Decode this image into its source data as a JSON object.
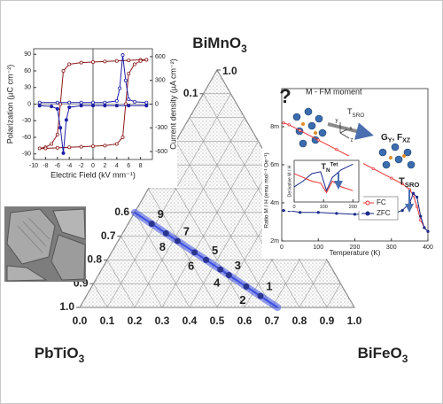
{
  "chart_data": [
    {
      "type": "ternary",
      "labels": {
        "top": [
          "BiMnO",
          "3"
        ],
        "left": [
          "PbTiO",
          "3"
        ],
        "right": [
          "BiFeO",
          "3"
        ]
      },
      "bottom_ticks": [
        {
          "value": 0,
          "label": "0.0"
        },
        0.1,
        0.2,
        0.3,
        0.4,
        0.5,
        0.6,
        0.7,
        0.8,
        0.9,
        {
          "value": 1,
          "label": "1.0"
        }
      ],
      "left_ticks": [
        {
          "value": 1,
          "label": "1.0"
        },
        0.9,
        0.8,
        0.7,
        0.6,
        0.1
      ],
      "right_ticks": [
        {
          "value": 1,
          "label": "1.0"
        }
      ],
      "grid": true,
      "color": "#3d4fe0",
      "line": {
        "x": [
          0,
          0.72
        ],
        "values": [
          0.4,
          0
        ]
      },
      "samples": {
        "labels": [
          "1",
          "2",
          "3",
          "4",
          "5",
          "6",
          "7",
          "8",
          "9"
        ],
        "x": [
          0.634,
          0.562,
          0.475,
          0.432,
          0.36,
          0.302,
          0.216,
          0.158,
          0.086
        ],
        "values": [
          0.048,
          0.088,
          0.136,
          0.16,
          0.2,
          0.232,
          0.28,
          0.312,
          0.352
        ]
      }
    },
    {
      "type": "line",
      "xlabel": "Electric Field (kV mm⁻¹)",
      "ylabel": "Polarization (µC cm⁻²)",
      "y2label": "Current density (µA cm⁻²)",
      "xlim": [
        -10,
        10
      ],
      "xticks": [
        -10,
        -8,
        -6,
        -4,
        -2,
        0,
        2,
        4,
        6,
        8
      ],
      "ylim": [
        -100,
        100
      ],
      "yticks": [
        -90,
        -60,
        -30,
        0,
        30,
        60,
        90
      ],
      "y2lim": [
        -700,
        700
      ],
      "y2ticks": [
        -600,
        -300,
        0,
        300,
        600
      ],
      "series": [
        {
          "color": "#8b1a1a",
          "x": [
            9,
            8,
            6,
            4,
            2,
            0,
            -2,
            -4,
            -5,
            -5.5,
            -6,
            -7,
            -8,
            -9,
            -8,
            -6,
            -4,
            -2,
            0,
            2,
            4,
            5,
            5.5,
            6,
            7,
            8,
            9
          ],
          "values": [
            80,
            80,
            79,
            78,
            77,
            76,
            75,
            72,
            60,
            0,
            -55,
            -72,
            -78,
            -80,
            -80,
            -79,
            -78,
            -77,
            -76,
            -75,
            -72,
            -60,
            0,
            55,
            72,
            78,
            80
          ]
        },
        {
          "color": "#1f1fa8",
          "axis": "y2",
          "x": [
            9,
            6,
            4,
            2,
            0,
            -2,
            -4,
            -4.5,
            -5,
            -5.5,
            -6,
            -7,
            -9
          ],
          "values": [
            -20,
            -20,
            -20,
            -20,
            -20,
            -20,
            -40,
            -200,
            -620,
            -300,
            -60,
            -30,
            -20
          ]
        },
        {
          "color": "#1f1fa8",
          "axis": "y2",
          "x": [
            -9,
            -6,
            -4,
            -2,
            0,
            2,
            4,
            4.5,
            5,
            5.5,
            6,
            7,
            9
          ],
          "values": [
            20,
            20,
            20,
            20,
            20,
            20,
            40,
            200,
            620,
            300,
            60,
            30,
            20
          ]
        }
      ]
    },
    {
      "type": "line",
      "xlabel": "Temperature (K)",
      "ylabel": "Ratio M / H (emu mol⁻¹ Oe⁻¹)",
      "xlim": [
        0,
        400
      ],
      "xticks": [
        0,
        100,
        200,
        300,
        400
      ],
      "ylim": [
        0.002,
        0.01
      ],
      "yticks": [
        {
          "value": 0.002,
          "label": "2m"
        },
        {
          "value": 0.004,
          "label": "4m"
        },
        {
          "value": 0.006,
          "label": "6m"
        },
        {
          "value": 0.008,
          "label": "8m"
        }
      ],
      "legend": "lower-right",
      "series": [
        {
          "name": "FC",
          "color": "#e83030",
          "x": [
            5,
            20,
            50,
            100,
            150,
            200,
            250,
            300,
            330,
            350,
            360,
            370,
            380,
            390,
            400
          ],
          "values": [
            0.0082,
            0.0081,
            0.0078,
            0.0073,
            0.0068,
            0.0063,
            0.0058,
            0.0053,
            0.005,
            0.0047,
            0.0044,
            0.0038,
            0.0031,
            0.0027,
            0.0025
          ]
        },
        {
          "name": "ZFC",
          "color": "#1a2a8a",
          "x": [
            5,
            20,
            50,
            100,
            150,
            200,
            250,
            300,
            330,
            350,
            360,
            370,
            380,
            390,
            400
          ],
          "values": [
            0.0036,
            0.0036,
            0.0035,
            0.0035,
            0.00345,
            0.0034,
            0.0034,
            0.0034,
            0.0036,
            0.004,
            0.0045,
            0.0043,
            0.0033,
            0.0027,
            0.0025
          ]
        }
      ],
      "annotations": {
        "question": "?",
        "moment": "M - FM moment",
        "tsro_top": [
          "T",
          "SRO"
        ],
        "order": [
          "G",
          "Y",
          ", F",
          "XZ"
        ],
        "axes": [
          "y",
          "z",
          "x"
        ],
        "tsro": [
          "T",
          "SRO"
        ]
      }
    },
    {
      "type": "line",
      "ylabel": "Derivative M / H",
      "xlim": [
        0,
        220
      ],
      "xticks": [
        0,
        100,
        200
      ],
      "ylim": [
        -1,
        1.2
      ],
      "annotation": [
        "T",
        "N",
        "Tet"
      ],
      "series": [
        {
          "color": "#1a2a8a",
          "x": [
            0,
            30,
            60,
            90,
            110,
            130,
            160,
            200
          ],
          "values": [
            -0.2,
            0.1,
            0.5,
            0.6,
            -0.4,
            0.3,
            0.7,
            1
          ]
        },
        {
          "color": "#e83030",
          "x": [
            0,
            30,
            60,
            90,
            110,
            130,
            160,
            200
          ],
          "values": [
            0.5,
            0.3,
            0.1,
            0,
            -0.5,
            0.1,
            -0.2,
            -0.4
          ]
        }
      ]
    }
  ]
}
